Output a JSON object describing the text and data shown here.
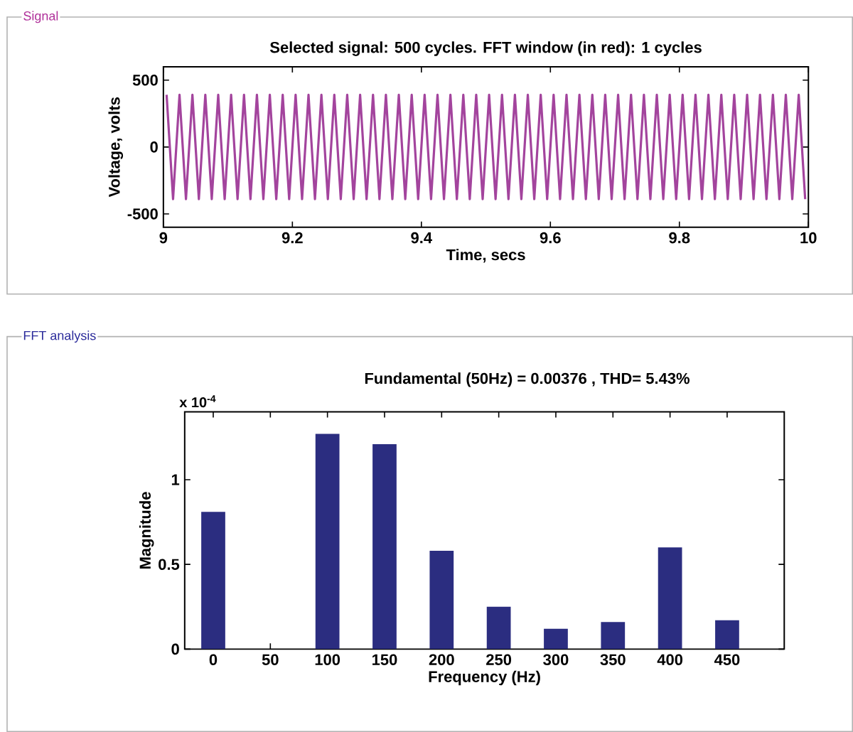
{
  "chart_data": [
    {
      "type": "line",
      "title": "Selected signal: 500 cycles. FFT window (in red): 1 cycles",
      "xlabel": "Time, secs",
      "ylabel": "Voltage, volts",
      "x": [
        9.005,
        9.015,
        9.025,
        9.035,
        9.045,
        9.055,
        9.065,
        9.075,
        9.085,
        9.095,
        9.105,
        9.115,
        9.125,
        9.135,
        9.145,
        9.155,
        9.165,
        9.175,
        9.185,
        9.195,
        9.205,
        9.215,
        9.225,
        9.235,
        9.245,
        9.255,
        9.265,
        9.275,
        9.285,
        9.295,
        9.305,
        9.315,
        9.325,
        9.335,
        9.345,
        9.355,
        9.365,
        9.375,
        9.385,
        9.395,
        9.405,
        9.415,
        9.425,
        9.435,
        9.445,
        9.455,
        9.465,
        9.475,
        9.485,
        9.495,
        9.505,
        9.515,
        9.525,
        9.535,
        9.545,
        9.555,
        9.565,
        9.575,
        9.585,
        9.595,
        9.605,
        9.615,
        9.625,
        9.635,
        9.645,
        9.655,
        9.665,
        9.675,
        9.685,
        9.695,
        9.705,
        9.715,
        9.725,
        9.735,
        9.745,
        9.755,
        9.765,
        9.775,
        9.785,
        9.795,
        9.805,
        9.815,
        9.825,
        9.835,
        9.845,
        9.855,
        9.865,
        9.875,
        9.885,
        9.895,
        9.905,
        9.915,
        9.925,
        9.935,
        9.945,
        9.955,
        9.965,
        9.975,
        9.985,
        9.995
      ],
      "series": [
        {
          "color": "#a3449d",
          "values": [
            390,
            -390,
            390,
            -390,
            390,
            -390,
            390,
            -390,
            390,
            -390,
            390,
            -390,
            390,
            -390,
            390,
            -390,
            390,
            -390,
            390,
            -390,
            390,
            -390,
            390,
            -390,
            390,
            -390,
            390,
            -390,
            390,
            -390,
            390,
            -390,
            390,
            -390,
            390,
            -390,
            390,
            -390,
            390,
            -390,
            390,
            -390,
            390,
            -390,
            390,
            -390,
            390,
            -390,
            390,
            -390,
            390,
            -390,
            390,
            -390,
            390,
            -390,
            390,
            -390,
            390,
            -390,
            390,
            -390,
            390,
            -390,
            390,
            -390,
            390,
            -390,
            390,
            -390,
            390,
            -390,
            390,
            -390,
            390,
            -390,
            390,
            -390,
            390,
            -390,
            390,
            -390,
            390,
            -390,
            390,
            -390,
            390,
            -390,
            390,
            -390,
            390,
            -390,
            390,
            -390,
            390,
            -390,
            390,
            -390,
            390,
            -390
          ]
        }
      ],
      "xlim": [
        9,
        10
      ],
      "ylim": [
        -600,
        600
      ],
      "xticks": [
        9,
        9.2,
        9.4,
        9.6,
        9.8,
        10
      ],
      "yticks": [
        -500,
        0,
        500
      ],
      "annotations": [
        "Signal"
      ]
    },
    {
      "type": "bar",
      "title": "Fundamental (50Hz) = 0.00376 , THD= 5.43%",
      "xlabel": "Frequency (Hz)",
      "ylabel": "Magnitude",
      "x": [
        0,
        50,
        100,
        150,
        200,
        250,
        300,
        350,
        400,
        450
      ],
      "series": [
        {
          "color": "#2b2d80",
          "values": [
            0.81,
            null,
            1.27,
            1.21,
            0.58,
            0.25,
            0.12,
            0.16,
            0.6,
            0.17
          ]
        }
      ],
      "xlim": [
        -25,
        500
      ],
      "ylim": [
        0,
        1.4
      ],
      "xticks": [
        0,
        50,
        100,
        150,
        200,
        250,
        300,
        350,
        400,
        450
      ],
      "yticks": [
        0,
        0.5,
        1
      ],
      "annotations": [
        "FFT analysis",
        "x 10$^{-4}$"
      ]
    }
  ]
}
